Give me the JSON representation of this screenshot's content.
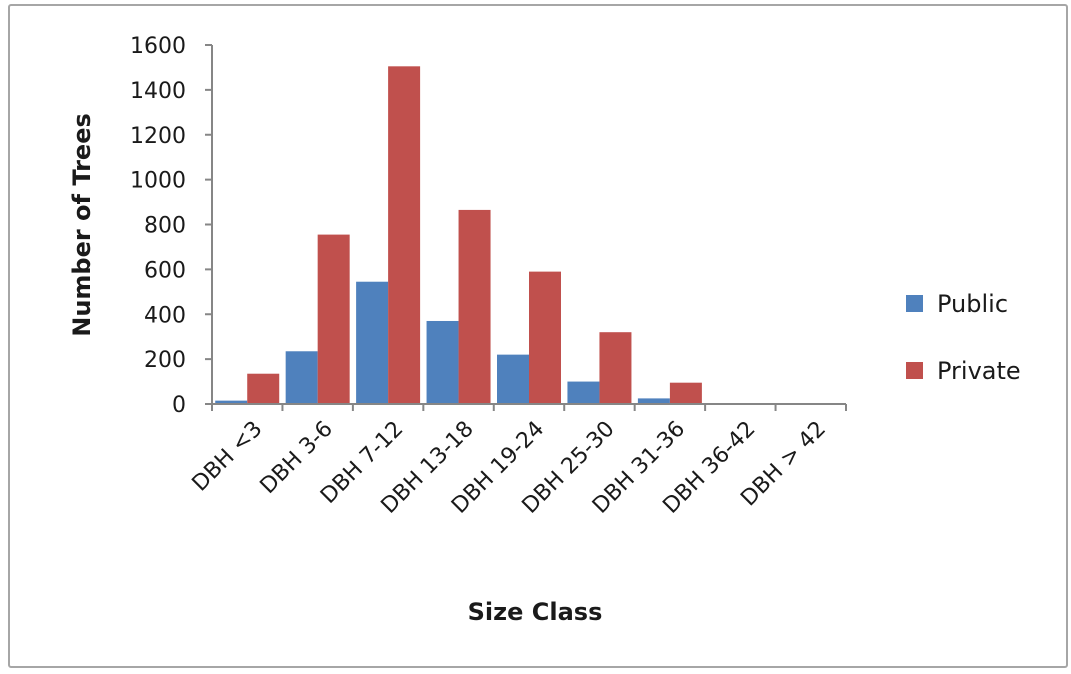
{
  "chart_data": {
    "type": "bar",
    "title": "",
    "xlabel": "Size Class",
    "ylabel": "Number of Trees",
    "categories": [
      "DBH <3",
      "DBH 3-6",
      "DBH 7-12",
      "DBH 13-18",
      "DBH 19-24",
      "DBH 25-30",
      "DBH 31-36",
      "DBH 36-42",
      "DBH > 42"
    ],
    "series": [
      {
        "name": "Public",
        "color": "#4f81bd",
        "values": [
          15,
          235,
          545,
          370,
          220,
          100,
          25,
          0,
          0
        ]
      },
      {
        "name": "Private",
        "color": "#c0504d",
        "values": [
          135,
          755,
          1505,
          865,
          590,
          320,
          95,
          0,
          0
        ]
      }
    ],
    "ylim": [
      0,
      1600
    ],
    "yticks": [
      0,
      200,
      400,
      600,
      800,
      1000,
      1200,
      1400,
      1600
    ],
    "grid": false,
    "legend_position": "right"
  }
}
